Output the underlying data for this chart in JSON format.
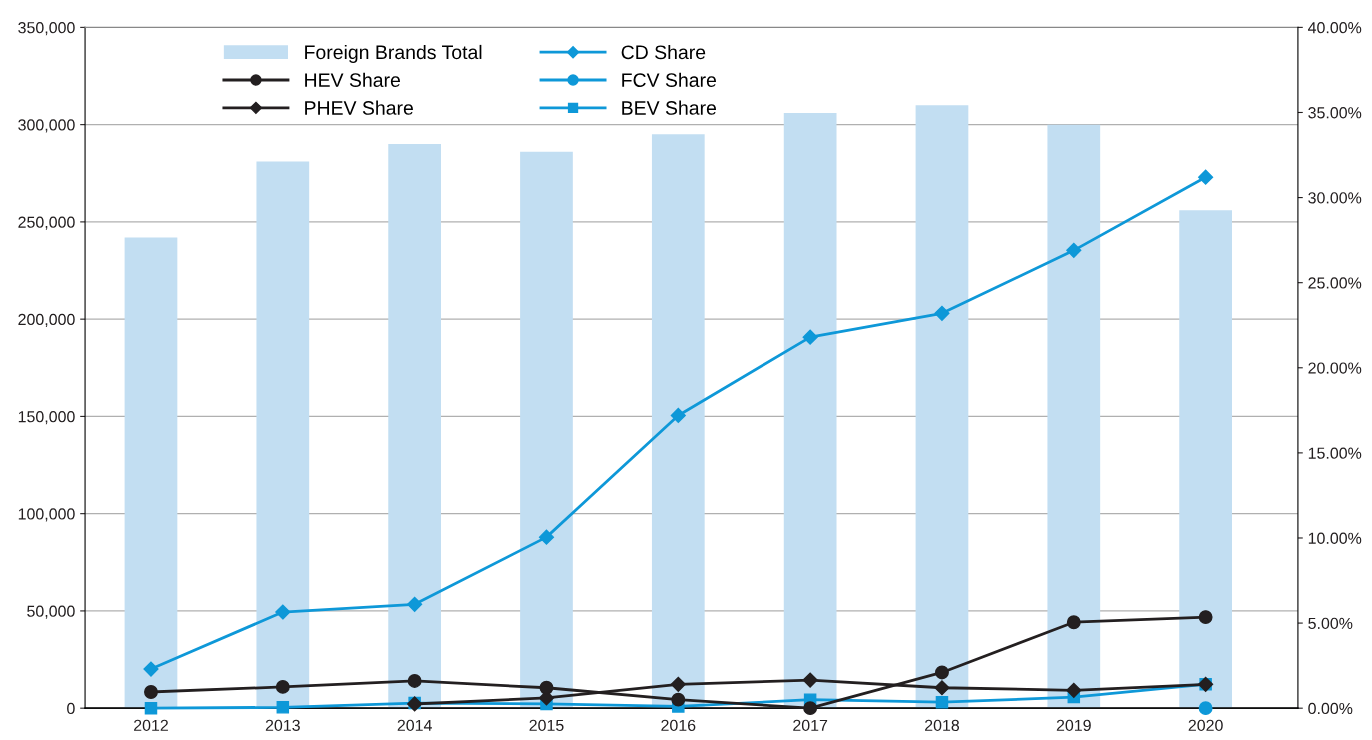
{
  "chart_data": {
    "type": "bar",
    "categories": [
      "2012",
      "2013",
      "2014",
      "2015",
      "2016",
      "2017",
      "2018",
      "2019",
      "2020"
    ],
    "series": [
      {
        "name": "Foreign Brands Total",
        "color": "#c2def2",
        "values": [
          242000,
          281000,
          290000,
          286000,
          295000,
          306000,
          310000,
          300000,
          256000
        ]
      },
      {
        "name": "HEV Share",
        "type": "line",
        "axis": "y2",
        "color": "#231f20",
        "marker": "circle",
        "values": [
          0.95,
          1.25,
          1.6,
          1.2,
          0.5,
          0.0,
          2.1,
          5.05,
          5.35
        ]
      },
      {
        "name": "PHEV Share",
        "type": "line",
        "axis": "y2",
        "color": "#231f20",
        "marker": "diamond",
        "values": [
          null,
          null,
          0.25,
          0.6,
          1.4,
          1.65,
          1.2,
          1.05,
          1.4
        ]
      },
      {
        "name": "CD Share",
        "type": "line",
        "axis": "y2",
        "color": "#0e98d8",
        "marker": "diamond",
        "values": [
          2.3,
          5.65,
          6.1,
          10.05,
          17.2,
          21.8,
          23.2,
          26.9,
          31.2
        ]
      },
      {
        "name": "FCV Share",
        "type": "line",
        "axis": "y2",
        "color": "#0e98d8",
        "marker": "circle",
        "values": [
          null,
          null,
          null,
          null,
          null,
          null,
          null,
          null,
          0.0
        ]
      },
      {
        "name": "BEV Share",
        "type": "line",
        "axis": "y2",
        "color": "#0e98d8",
        "marker": "square",
        "values": [
          0.0,
          0.05,
          0.3,
          0.25,
          0.1,
          0.5,
          0.35,
          0.65,
          1.4
        ]
      }
    ],
    "ylim": [
      0,
      350000
    ],
    "yticks": [
      {
        "value": 0,
        "label": "0"
      },
      {
        "value": 50000,
        "label": "50,000"
      },
      {
        "value": 100000,
        "label": "100,000"
      },
      {
        "value": 150000,
        "label": "150,000"
      },
      {
        "value": 200000,
        "label": "200,000"
      },
      {
        "value": 250000,
        "label": "250,000"
      },
      {
        "value": 300000,
        "label": "300,000"
      },
      {
        "value": 350000,
        "label": "350,000"
      }
    ],
    "y2lim": [
      0,
      40
    ],
    "y2ticks": [
      {
        "value": 0,
        "label": "0.00%"
      },
      {
        "value": 5,
        "label": "5.00%"
      },
      {
        "value": 10,
        "label": "10.00%"
      },
      {
        "value": 15,
        "label": "15.00%"
      },
      {
        "value": 20,
        "label": "20.00%"
      },
      {
        "value": 25,
        "label": "25.00%"
      },
      {
        "value": 30,
        "label": "30.00%"
      },
      {
        "value": 35,
        "label": "35.00%"
      },
      {
        "value": 40,
        "label": "40.00%"
      }
    ],
    "grid": "y",
    "legend": "top left"
  }
}
